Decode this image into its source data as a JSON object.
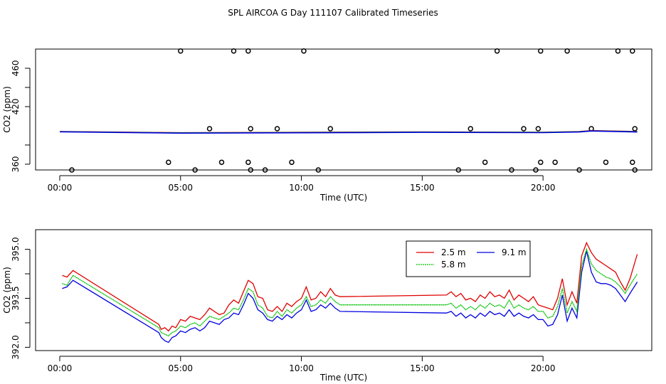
{
  "title": "SPL AIRCOA G  Day 111107  Calibrated Timeseries",
  "colors": {
    "2.5 m": "#e00000",
    "5.8 m": "#00c000",
    "9.1 m": "#0000e0",
    "axis": "#000000"
  },
  "chart_data": [
    {
      "type": "line",
      "xlabel": "Time (UTC)",
      "ylabel": "CO2 (ppm)",
      "xlim": [
        -1.0,
        24.5
      ],
      "ylim": [
        354,
        480
      ],
      "x_ticks": [
        0,
        5,
        10,
        15,
        20
      ],
      "x_tick_labels": [
        "00:00",
        "05:00",
        "10:00",
        "15:00",
        "20:00"
      ],
      "y_ticks": [
        360,
        420,
        460
      ],
      "y_tick_labels": [
        "360",
        "420",
        "460"
      ],
      "extra_y_ticks": [
        380,
        440
      ],
      "series": [
        {
          "name": "2.5 m",
          "x": [
            0,
            5,
            10,
            15,
            20,
            21.5,
            22,
            23.9
          ],
          "values": [
            394,
            392.8,
            393.2,
            393.6,
            393.3,
            394,
            395,
            394
          ]
        },
        {
          "name": "5.8 m",
          "x": [
            0,
            5,
            10,
            15,
            20,
            21.5,
            22,
            23.9
          ],
          "values": [
            393.9,
            392.6,
            393.0,
            393.4,
            393.1,
            393.8,
            394.8,
            393.8
          ]
        },
        {
          "name": "9.1 m",
          "x": [
            0,
            5,
            10,
            15,
            20,
            21.5,
            22,
            23.9
          ],
          "values": [
            393.8,
            392.4,
            392.8,
            393.2,
            392.9,
            393.6,
            394.6,
            393.6
          ]
        }
      ],
      "outliers": [
        {
          "x": 0.5,
          "y": 354
        },
        {
          "x": 4.5,
          "y": 362
        },
        {
          "x": 5.0,
          "y": 478
        },
        {
          "x": 5.6,
          "y": 354
        },
        {
          "x": 6.2,
          "y": 397
        },
        {
          "x": 6.7,
          "y": 362
        },
        {
          "x": 7.2,
          "y": 478
        },
        {
          "x": 7.8,
          "y": 478
        },
        {
          "x": 7.8,
          "y": 362
        },
        {
          "x": 7.9,
          "y": 354
        },
        {
          "x": 7.9,
          "y": 397
        },
        {
          "x": 8.5,
          "y": 354
        },
        {
          "x": 9.0,
          "y": 397
        },
        {
          "x": 9.6,
          "y": 362
        },
        {
          "x": 10.1,
          "y": 478
        },
        {
          "x": 10.7,
          "y": 354
        },
        {
          "x": 11.2,
          "y": 397
        },
        {
          "x": 16.5,
          "y": 354
        },
        {
          "x": 17.0,
          "y": 397
        },
        {
          "x": 17.6,
          "y": 362
        },
        {
          "x": 18.1,
          "y": 478
        },
        {
          "x": 18.7,
          "y": 354
        },
        {
          "x": 19.2,
          "y": 397
        },
        {
          "x": 19.7,
          "y": 354
        },
        {
          "x": 19.8,
          "y": 397
        },
        {
          "x": 19.9,
          "y": 362
        },
        {
          "x": 19.9,
          "y": 478
        },
        {
          "x": 20.5,
          "y": 362
        },
        {
          "x": 21.0,
          "y": 478
        },
        {
          "x": 21.5,
          "y": 354
        },
        {
          "x": 22.0,
          "y": 397
        },
        {
          "x": 22.6,
          "y": 362
        },
        {
          "x": 23.1,
          "y": 478
        },
        {
          "x": 23.7,
          "y": 478
        },
        {
          "x": 23.7,
          "y": 362
        },
        {
          "x": 23.8,
          "y": 354
        },
        {
          "x": 23.8,
          "y": 397
        }
      ]
    },
    {
      "type": "line",
      "xlabel": "Time (UTC)",
      "ylabel": "CO2 (ppm)",
      "xlim": [
        -1.0,
        24.5
      ],
      "ylim": [
        391.9,
        395.6
      ],
      "x_ticks": [
        0,
        5,
        10,
        15,
        20
      ],
      "x_tick_labels": [
        "00:00",
        "05:00",
        "10:00",
        "15:00",
        "20:00"
      ],
      "y_ticks": [
        392.0,
        393.5,
        395.0
      ],
      "y_tick_labels": [
        "392.0",
        "393.5",
        "395.0"
      ],
      "extra_y_ticks": [
        392.75,
        394.25
      ],
      "legend": {
        "entries": [
          "2.5 m",
          "9.1 m",
          "5.8 m"
        ],
        "position": "top-right"
      },
      "series": [
        {
          "name": "2.5 m",
          "x": [
            0.1,
            0.3,
            0.55,
            4.1,
            4.2,
            4.35,
            4.5,
            4.65,
            4.8,
            5.0,
            5.2,
            5.4,
            5.6,
            5.8,
            6.0,
            6.2,
            6.4,
            6.6,
            6.8,
            7.0,
            7.2,
            7.4,
            7.6,
            7.8,
            8.0,
            8.2,
            8.4,
            8.6,
            8.8,
            9.0,
            9.2,
            9.4,
            9.6,
            9.8,
            10.0,
            10.2,
            10.4,
            10.6,
            10.8,
            11.0,
            11.2,
            11.4,
            11.6,
            16.0,
            16.2,
            16.4,
            16.6,
            16.8,
            17.0,
            17.2,
            17.4,
            17.6,
            17.8,
            18.0,
            18.2,
            18.4,
            18.6,
            18.8,
            19.0,
            19.2,
            19.4,
            19.6,
            19.8,
            20.0,
            20.2,
            20.4,
            20.6,
            20.8,
            21.0,
            21.2,
            21.4,
            21.6,
            21.8,
            22.0,
            22.2,
            22.4,
            22.6,
            22.8,
            23.0,
            23.2,
            23.4,
            23.6,
            23.9
          ],
          "values": [
            394.2,
            394.15,
            394.35,
            392.7,
            392.55,
            392.6,
            392.5,
            392.65,
            392.6,
            392.85,
            392.8,
            392.95,
            392.9,
            392.85,
            393.0,
            393.2,
            393.1,
            393.0,
            393.05,
            393.3,
            393.45,
            393.35,
            393.7,
            394.05,
            393.95,
            393.55,
            393.5,
            393.15,
            393.1,
            393.25,
            393.1,
            393.35,
            393.25,
            393.4,
            393.5,
            393.85,
            393.45,
            393.5,
            393.7,
            393.55,
            393.8,
            393.6,
            393.55,
            393.6,
            393.7,
            393.55,
            393.65,
            393.45,
            393.5,
            393.4,
            393.6,
            393.5,
            393.7,
            393.55,
            393.6,
            393.5,
            393.75,
            393.45,
            393.6,
            393.5,
            393.4,
            393.55,
            393.3,
            393.25,
            393.2,
            393.15,
            393.5,
            394.1,
            393.3,
            393.7,
            393.35,
            394.8,
            395.2,
            394.9,
            394.7,
            394.6,
            394.5,
            394.4,
            394.3,
            394.0,
            393.75,
            394.1,
            394.85
          ]
        },
        {
          "name": "5.8 m",
          "x": [
            0.1,
            0.3,
            0.55,
            4.1,
            4.2,
            4.35,
            4.5,
            4.65,
            4.8,
            5.0,
            5.2,
            5.4,
            5.6,
            5.8,
            6.0,
            6.2,
            6.4,
            6.6,
            6.8,
            7.0,
            7.2,
            7.4,
            7.6,
            7.8,
            8.0,
            8.2,
            8.4,
            8.6,
            8.8,
            9.0,
            9.2,
            9.4,
            9.6,
            9.8,
            10.0,
            10.2,
            10.4,
            10.6,
            10.8,
            11.0,
            11.2,
            11.4,
            11.6,
            16.0,
            16.2,
            16.4,
            16.6,
            16.8,
            17.0,
            17.2,
            17.4,
            17.6,
            17.8,
            18.0,
            18.2,
            18.4,
            18.6,
            18.8,
            19.0,
            19.2,
            19.4,
            19.6,
            19.8,
            20.0,
            20.2,
            20.4,
            20.6,
            20.8,
            21.0,
            21.2,
            21.4,
            21.6,
            21.8,
            22.0,
            22.2,
            22.4,
            22.6,
            22.8,
            23.0,
            23.2,
            23.4,
            23.6,
            23.9
          ],
          "values": [
            393.95,
            393.9,
            394.2,
            392.6,
            392.45,
            392.4,
            392.35,
            392.45,
            392.5,
            392.65,
            392.6,
            392.7,
            392.75,
            392.65,
            392.8,
            392.95,
            392.9,
            392.85,
            392.95,
            393.05,
            393.2,
            393.15,
            393.45,
            393.8,
            393.7,
            393.3,
            393.2,
            392.95,
            392.9,
            393.1,
            392.95,
            393.15,
            393.05,
            393.2,
            393.3,
            393.55,
            393.25,
            393.3,
            393.45,
            393.35,
            393.55,
            393.4,
            393.3,
            393.3,
            393.35,
            393.2,
            393.3,
            393.15,
            393.25,
            393.15,
            393.3,
            393.2,
            393.35,
            393.25,
            393.3,
            393.2,
            393.45,
            393.2,
            393.3,
            393.2,
            393.15,
            393.25,
            393.1,
            393.1,
            392.9,
            392.95,
            393.25,
            393.8,
            393.05,
            393.4,
            393.1,
            394.5,
            395.0,
            394.55,
            394.35,
            394.25,
            394.15,
            394.1,
            394.0,
            393.85,
            393.65,
            393.9,
            394.25
          ]
        },
        {
          "name": "9.1 m",
          "x": [
            0.1,
            0.3,
            0.55,
            4.1,
            4.2,
            4.35,
            4.5,
            4.65,
            4.8,
            5.0,
            5.2,
            5.4,
            5.6,
            5.8,
            6.0,
            6.2,
            6.4,
            6.6,
            6.8,
            7.0,
            7.2,
            7.4,
            7.6,
            7.8,
            8.0,
            8.2,
            8.4,
            8.6,
            8.8,
            9.0,
            9.2,
            9.4,
            9.6,
            9.8,
            10.0,
            10.2,
            10.4,
            10.6,
            10.8,
            11.0,
            11.2,
            11.4,
            11.6,
            16.0,
            16.2,
            16.4,
            16.6,
            16.8,
            17.0,
            17.2,
            17.4,
            17.6,
            17.8,
            18.0,
            18.2,
            18.4,
            18.6,
            18.8,
            19.0,
            19.2,
            19.4,
            19.6,
            19.8,
            20.0,
            20.2,
            20.4,
            20.6,
            20.8,
            21.0,
            21.2,
            21.4,
            21.6,
            21.8,
            22.0,
            22.2,
            22.4,
            22.6,
            22.8,
            23.0,
            23.2,
            23.4,
            23.6,
            23.9
          ],
          "values": [
            393.8,
            393.85,
            394.05,
            392.45,
            392.3,
            392.2,
            392.15,
            392.3,
            392.35,
            392.5,
            392.45,
            392.55,
            392.6,
            392.5,
            392.6,
            392.8,
            392.75,
            392.7,
            392.85,
            392.9,
            393.05,
            393.0,
            393.3,
            393.65,
            393.5,
            393.15,
            393.05,
            392.85,
            392.8,
            392.95,
            392.85,
            393.0,
            392.9,
            393.05,
            393.15,
            393.45,
            393.1,
            393.15,
            393.3,
            393.2,
            393.35,
            393.2,
            393.1,
            393.05,
            393.1,
            392.95,
            393.05,
            392.9,
            393.0,
            392.9,
            393.05,
            392.95,
            393.1,
            393.0,
            393.05,
            392.95,
            393.15,
            392.95,
            393.05,
            392.95,
            392.9,
            393.0,
            392.85,
            392.85,
            392.65,
            392.7,
            393.0,
            393.6,
            392.8,
            393.2,
            392.9,
            394.3,
            394.95,
            394.3,
            394.0,
            393.95,
            393.95,
            393.9,
            393.8,
            393.6,
            393.4,
            393.65,
            394.0
          ]
        }
      ]
    }
  ]
}
